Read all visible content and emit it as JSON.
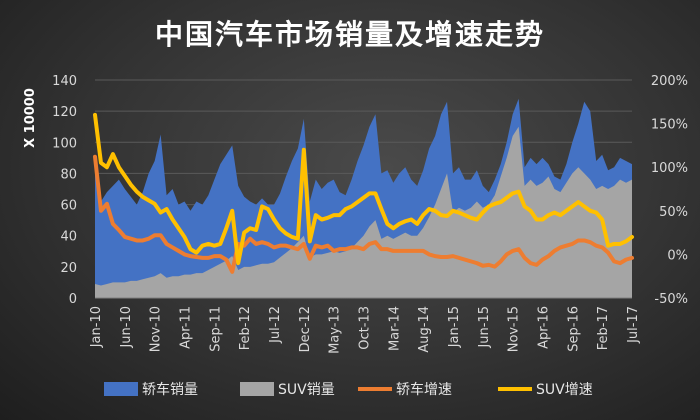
{
  "chart_data": {
    "type": "area+line",
    "title": "中国汽车市场销量及增速走势",
    "ylabel": "X 10000",
    "ylim": [
      0,
      140
    ],
    "y2lim": [
      -50,
      200
    ],
    "y_ticks": [
      "0",
      "20",
      "40",
      "60",
      "80",
      "100",
      "120",
      "140"
    ],
    "y2_ticks": [
      "-50%",
      "0%",
      "50%",
      "100%",
      "150%",
      "200%"
    ],
    "x_tick_labels": [
      "Jan-10",
      "Jun-10",
      "Nov-10",
      "Apr-11",
      "Sep-11",
      "Feb-12",
      "Jul-12",
      "Dec-12",
      "May-13",
      "Oct-13",
      "Mar-14",
      "Aug-14",
      "Jan-15",
      "Jun-15",
      "Nov-15",
      "Apr-16",
      "Sep-16",
      "Feb-17",
      "Jul-17"
    ],
    "x_start": "2010-01",
    "months": 91,
    "grid": true,
    "legend_position": "bottom",
    "series": [
      {
        "name": "轿车销量",
        "kind": "area",
        "axis": "left",
        "color": "#4472c4",
        "values": [
          86,
          62,
          68,
          72,
          76,
          70,
          65,
          60,
          68,
          80,
          88,
          105,
          66,
          70,
          60,
          62,
          56,
          62,
          60,
          66,
          76,
          86,
          92,
          98,
          72,
          65,
          62,
          60,
          64,
          60,
          60,
          67,
          78,
          88,
          96,
          115,
          62,
          76,
          70,
          74,
          76,
          68,
          66,
          76,
          88,
          98,
          110,
          118,
          80,
          82,
          74,
          80,
          84,
          76,
          72,
          82,
          96,
          104,
          118,
          126,
          80,
          84,
          76,
          76,
          82,
          72,
          68,
          76,
          86,
          100,
          118,
          128,
          84,
          90,
          86,
          90,
          86,
          78,
          76,
          86,
          100,
          112,
          126,
          120,
          88,
          92,
          82,
          84,
          90,
          88,
          86
        ]
      },
      {
        "name": "SUV销量",
        "kind": "area",
        "axis": "left",
        "color": "#a5a5a5",
        "values": [
          9,
          8,
          9,
          10,
          10,
          10,
          11,
          11,
          12,
          13,
          14,
          16,
          13,
          14,
          14,
          15,
          15,
          16,
          16,
          18,
          20,
          22,
          24,
          27,
          18,
          20,
          20,
          21,
          22,
          22,
          23,
          26,
          29,
          32,
          36,
          40,
          26,
          28,
          28,
          29,
          30,
          29,
          30,
          32,
          36,
          40,
          46,
          50,
          38,
          40,
          38,
          40,
          42,
          40,
          40,
          45,
          52,
          60,
          70,
          80,
          55,
          58,
          56,
          58,
          62,
          58,
          60,
          66,
          78,
          90,
          104,
          110,
          72,
          76,
          72,
          74,
          78,
          70,
          68,
          74,
          80,
          84,
          80,
          76,
          70,
          72,
          70,
          72,
          76,
          74,
          76
        ]
      },
      {
        "name": "轿车增速",
        "kind": "line",
        "axis": "right",
        "color": "#ed7d31",
        "values": [
          112,
          50,
          58,
          35,
          28,
          20,
          18,
          16,
          16,
          18,
          22,
          22,
          12,
          8,
          4,
          0,
          -2,
          -3,
          -4,
          -4,
          -2,
          -2,
          -6,
          -20,
          12,
          10,
          18,
          12,
          14,
          12,
          8,
          10,
          10,
          8,
          6,
          12,
          -5,
          10,
          8,
          10,
          4,
          6,
          6,
          8,
          8,
          6,
          12,
          14,
          6,
          6,
          4,
          4,
          4,
          4,
          4,
          4,
          0,
          -2,
          -3,
          -3,
          -2,
          -4,
          -6,
          -8,
          -10,
          -13,
          -12,
          -14,
          -8,
          0,
          4,
          6,
          -4,
          -10,
          -12,
          -6,
          -2,
          4,
          8,
          10,
          12,
          16,
          16,
          14,
          10,
          8,
          2,
          -8,
          -10,
          -6,
          -4
        ]
      },
      {
        "name": "SUV增速",
        "kind": "line",
        "axis": "right",
        "color": "#ffc000",
        "values": [
          160,
          105,
          100,
          115,
          100,
          90,
          80,
          72,
          66,
          62,
          58,
          48,
          52,
          40,
          30,
          20,
          6,
          2,
          10,
          12,
          10,
          12,
          30,
          50,
          -10,
          25,
          30,
          28,
          55,
          52,
          40,
          30,
          24,
          20,
          18,
          120,
          15,
          45,
          40,
          42,
          45,
          45,
          52,
          55,
          60,
          65,
          70,
          70,
          52,
          35,
          30,
          35,
          38,
          40,
          35,
          45,
          52,
          50,
          45,
          44,
          50,
          48,
          45,
          42,
          40,
          48,
          55,
          58,
          60,
          65,
          70,
          72,
          55,
          50,
          40,
          40,
          45,
          48,
          45,
          50,
          55,
          60,
          55,
          50,
          48,
          40,
          10,
          12,
          12,
          15,
          20
        ]
      }
    ]
  }
}
